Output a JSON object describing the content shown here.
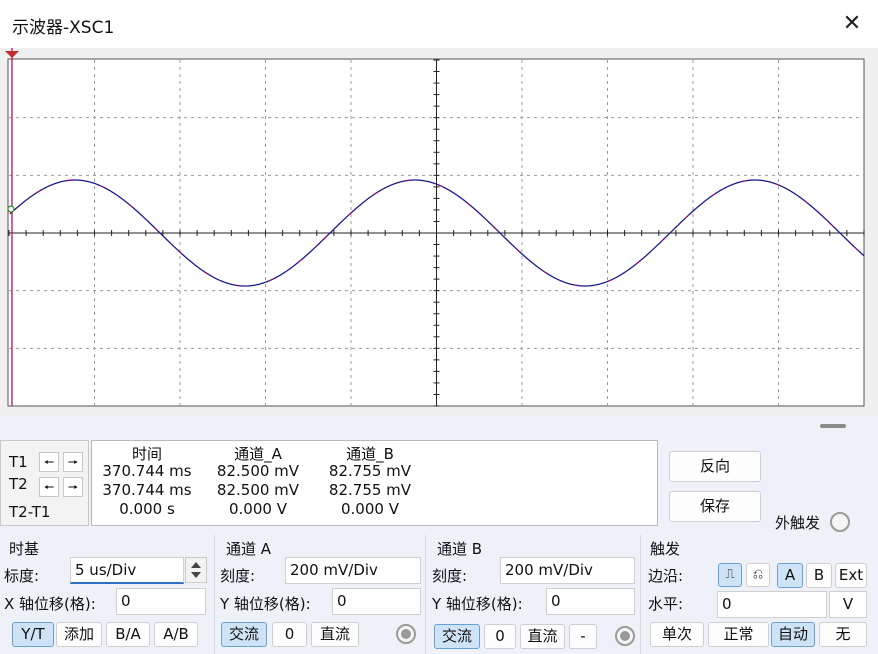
{
  "window": {
    "title": "示波器-XSC1",
    "close_glyph": "✕"
  },
  "cursors": {
    "t1_label": "T1",
    "t2_label": "T2",
    "diff_label": "T2-T1",
    "left_glyph": "🠔",
    "right_glyph": "🠖"
  },
  "readout": {
    "headers": [
      "时间",
      "通道_A",
      "通道_B"
    ],
    "rows": [
      [
        "370.744 ms",
        "82.500 mV",
        "82.755 mV"
      ],
      [
        "370.744 ms",
        "82.500 mV",
        "82.755 mV"
      ],
      [
        "0.000 s",
        "0.000 V",
        "0.000 V"
      ]
    ]
  },
  "actions": {
    "reverse": "反向",
    "save": "保存",
    "ext_trigger": "外触发"
  },
  "timebase": {
    "title": "时基",
    "scale_label": "标度:",
    "scale_value": "5 us/Div",
    "xpos_label": "X 轴位移(格):",
    "xpos_value": "0",
    "modes": [
      "Y/T",
      "添加",
      "B/A",
      "A/B"
    ],
    "active_mode": "Y/T"
  },
  "channel_a": {
    "title": "通道 A",
    "scale_label": "刻度:",
    "scale_value": "200 mV/Div",
    "ypos_label": "Y 轴位移(格):",
    "ypos_value": "0",
    "coupling": [
      "交流",
      "0",
      "直流"
    ],
    "active_coupling": "交流"
  },
  "channel_b": {
    "title": "通道 B",
    "scale_label": "刻度:",
    "scale_value": "200 mV/Div",
    "ypos_label": "Y 轴位移(格):",
    "ypos_value": "0",
    "coupling": [
      "交流",
      "0",
      "直流",
      "-"
    ],
    "active_coupling": "交流"
  },
  "trigger": {
    "title": "触发",
    "edge_label": "边沿:",
    "edge_rise_glyph": "⎍",
    "edge_fall_glyph": "⎌",
    "sources": [
      "A",
      "B",
      "Ext"
    ],
    "active_source": "A",
    "level_label": "水平:",
    "level_value": "0",
    "level_unit": "V",
    "modes": [
      "单次",
      "正常",
      "自动",
      "无"
    ],
    "active_mode": "自动"
  },
  "colors": {
    "trace": "#1a1a8c",
    "trace_secondary": "#b0005a",
    "grid": "#9a9a9a",
    "accent": "#2f6fc4"
  }
}
